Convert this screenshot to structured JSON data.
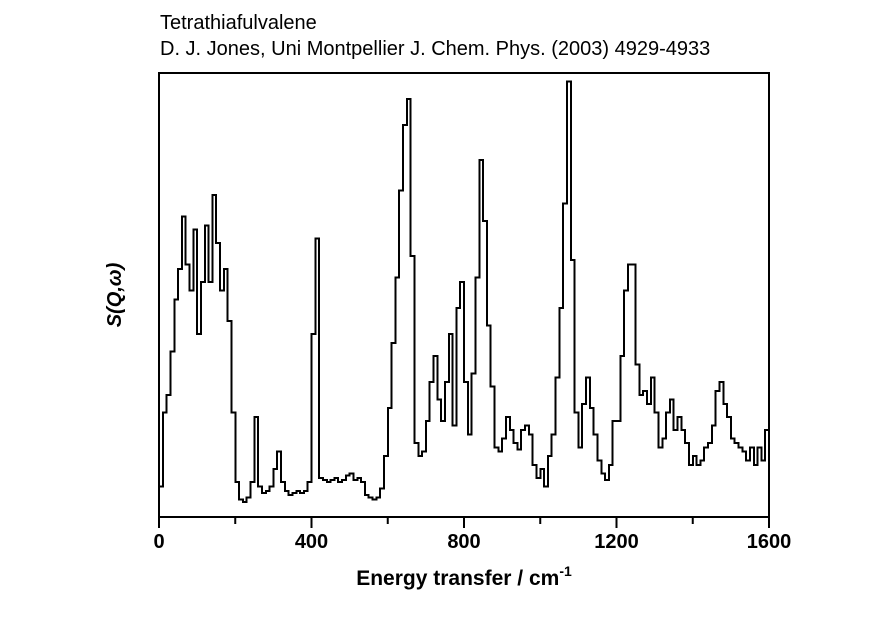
{
  "header": {
    "line1": "Tetrathiafulvalene",
    "line2": "D. J. Jones, Uni Montpellier J. Chem. Phys. (2003) 4929-4933"
  },
  "chart_data": {
    "type": "line",
    "style": "step-histogram",
    "title": "Tetrathiafulvalene INS spectrum",
    "xlabel_base": "Energy transfer / cm",
    "xlabel_sup": "-1",
    "ylabel": "S(Q,ω)",
    "xlim": [
      0,
      1600
    ],
    "ylim": [
      0,
      102
    ],
    "grid": false,
    "legend_position": "none",
    "line_color": "#000000",
    "frame_color": "#000000",
    "background_color": "#ffffff",
    "x_ticks_major": [
      0,
      400,
      800,
      1200,
      1600
    ],
    "x_tick_labels": [
      "0",
      "400",
      "800",
      "1200",
      "1600"
    ],
    "x_ticks_minor": [
      200,
      600,
      1000,
      1400
    ],
    "y_tick_labels": [],
    "x_start": 0,
    "bin_width_cm1": 10,
    "intensity_arbitrary_units": [
      7,
      24,
      28,
      38,
      50,
      57,
      69,
      58,
      52,
      66,
      42,
      54,
      67,
      54,
      74,
      63,
      52,
      57,
      45,
      24,
      8,
      4,
      3.5,
      4.5,
      8,
      23,
      7,
      5.5,
      6,
      7,
      11,
      15,
      8,
      6,
      5,
      5.5,
      6,
      5.5,
      6,
      8,
      42,
      64,
      9,
      8.5,
      8,
      8.5,
      9,
      8,
      8.5,
      9.5,
      10,
      8.5,
      9,
      8,
      5,
      4.5,
      4,
      4.5,
      6.5,
      14,
      25,
      40,
      55,
      75,
      90,
      96,
      60,
      17,
      14,
      15,
      22,
      31,
      37,
      27,
      22,
      31,
      42,
      21,
      48,
      54,
      31,
      19,
      33,
      55,
      82,
      68,
      44,
      30,
      16,
      15,
      18,
      23,
      20,
      17,
      15.5,
      20,
      21,
      19,
      12,
      9,
      11,
      7,
      14,
      19,
      32,
      48,
      72,
      100,
      59,
      24,
      16,
      26,
      32,
      25,
      19,
      13,
      10,
      8.5,
      12,
      22,
      22,
      37,
      52,
      58,
      58,
      35,
      28,
      29,
      26,
      32,
      24,
      16,
      18,
      24,
      27,
      20,
      23,
      20,
      17,
      12,
      14,
      12,
      13,
      16,
      17,
      21,
      29,
      31,
      26,
      23,
      18,
      17,
      16,
      15,
      13,
      16,
      12,
      16,
      13,
      20
    ]
  }
}
